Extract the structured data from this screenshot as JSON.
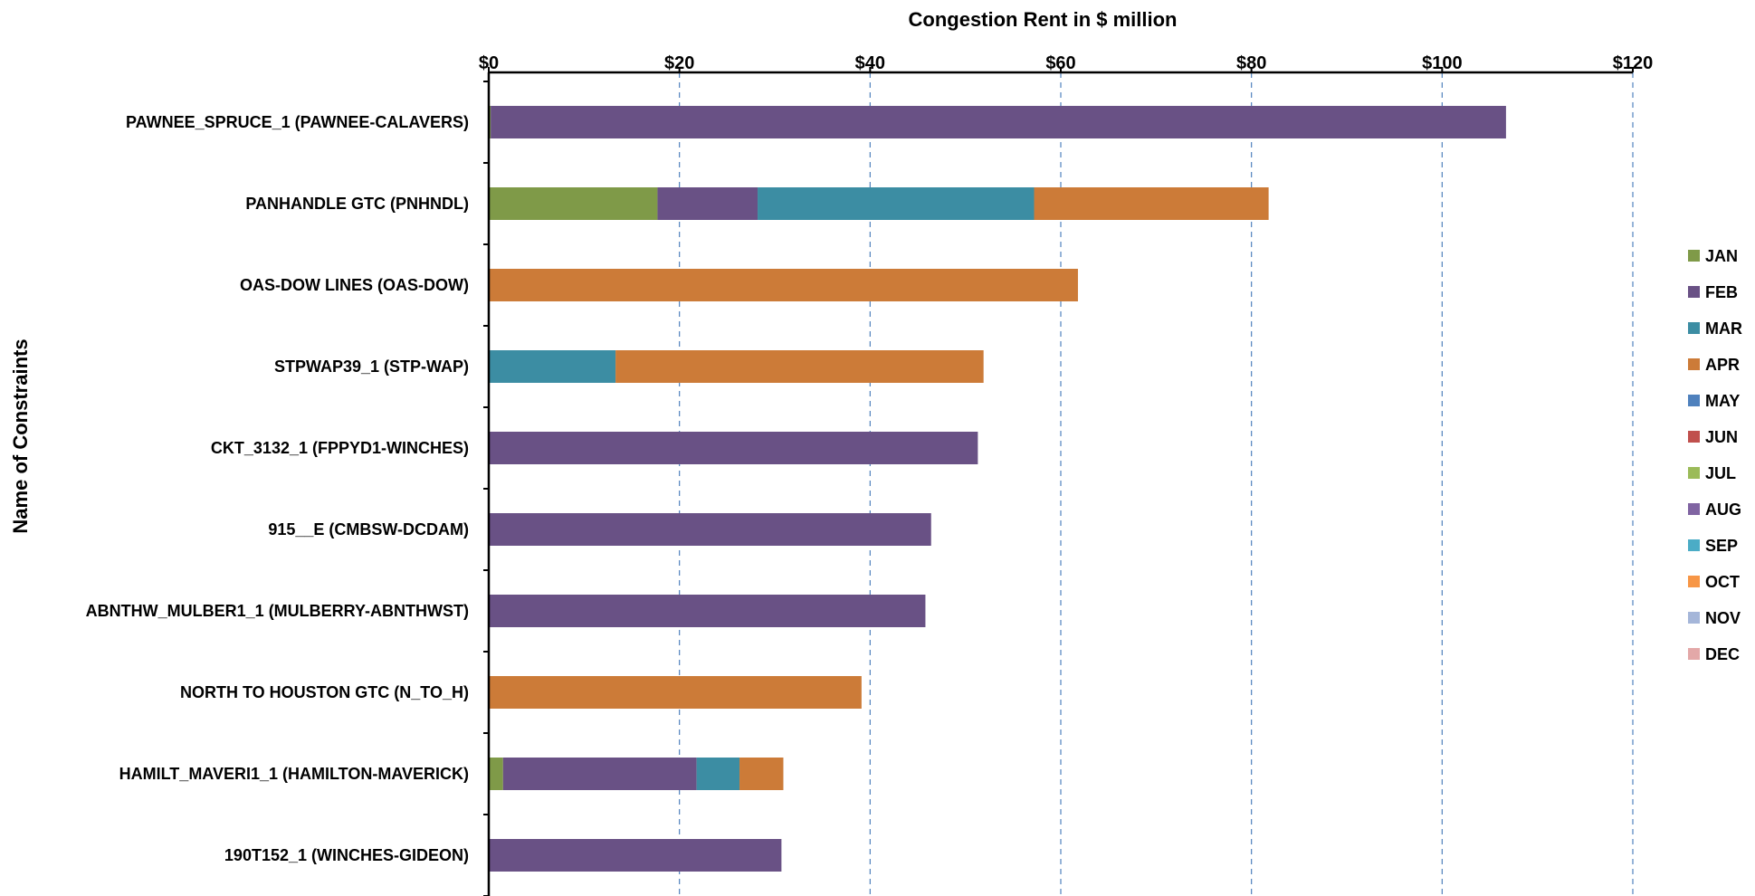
{
  "chart_data": {
    "type": "bar",
    "orientation": "horizontal",
    "stacked": true,
    "title": "Congestion Rent in $ million",
    "xlabel": "Congestion Rent in $ million",
    "ylabel": "Name of Constraints",
    "xlim": [
      0,
      120
    ],
    "x_ticks": [
      0,
      20,
      40,
      60,
      80,
      100,
      120
    ],
    "x_tick_labels": [
      "$0",
      "$20",
      "$40",
      "$60",
      "$80",
      "$100",
      "$120"
    ],
    "grid": "vertical dashed",
    "legend_position": "right",
    "categories": [
      "PAWNEE_SPRUCE_1 (PAWNEE-CALAVERS)",
      "PANHANDLE GTC (PNHNDL)",
      "OAS-DOW LINES (OAS-DOW)",
      "STPWAP39_1 (STP-WAP)",
      "CKT_3132_1 (FPPYD1-WINCHES)",
      "915__E (CMBSW-DCDAM)",
      "ABNTHW_MULBER1_1 (MULBERRY-ABNTHWST)",
      "NORTH TO HOUSTON GTC (N_TO_H)",
      "HAMILT_MAVERI1_1 (HAMILTON-MAVERICK)",
      "190T152_1 (WINCHES-GIDEON)"
    ],
    "series": [
      {
        "name": "JAN",
        "color": "#7F9A48",
        "values": [
          0.2,
          17.7,
          0,
          0,
          0,
          0,
          0,
          0,
          1.5,
          0
        ]
      },
      {
        "name": "FEB",
        "color": "#695185",
        "values": [
          106.5,
          10.5,
          0,
          0,
          51.3,
          46.4,
          45.8,
          0,
          20.3,
          30.7
        ]
      },
      {
        "name": "MAR",
        "color": "#3C8DA3",
        "values": [
          0,
          29.0,
          0,
          13.3,
          0,
          0,
          0,
          0,
          4.5,
          0
        ]
      },
      {
        "name": "APR",
        "color": "#CC7B38",
        "values": [
          0,
          24.6,
          61.8,
          38.6,
          0,
          0,
          0,
          39.1,
          4.6,
          0
        ]
      },
      {
        "name": "MAY",
        "color": "#4F81BD",
        "values": [
          0,
          0,
          0,
          0,
          0,
          0,
          0,
          0,
          0,
          0
        ]
      },
      {
        "name": "JUN",
        "color": "#C0504D",
        "values": [
          0,
          0,
          0,
          0,
          0,
          0,
          0,
          0,
          0,
          0
        ]
      },
      {
        "name": "JUL",
        "color": "#9BBB59",
        "values": [
          0,
          0,
          0,
          0,
          0,
          0,
          0,
          0,
          0,
          0
        ]
      },
      {
        "name": "AUG",
        "color": "#8064A2",
        "values": [
          0,
          0,
          0,
          0,
          0,
          0,
          0,
          0,
          0,
          0
        ]
      },
      {
        "name": "SEP",
        "color": "#4BACC6",
        "values": [
          0,
          0,
          0,
          0,
          0,
          0,
          0,
          0,
          0,
          0
        ]
      },
      {
        "name": "OCT",
        "color": "#F79646",
        "values": [
          0,
          0,
          0,
          0,
          0,
          0,
          0,
          0,
          0,
          0
        ]
      },
      {
        "name": "NOV",
        "color": "#A5B6D9",
        "values": [
          0,
          0,
          0,
          0,
          0,
          0,
          0,
          0,
          0,
          0
        ]
      },
      {
        "name": "DEC",
        "color": "#E3A8A8",
        "values": [
          0,
          0,
          0,
          0,
          0,
          0,
          0,
          0,
          0,
          0
        ]
      }
    ]
  }
}
